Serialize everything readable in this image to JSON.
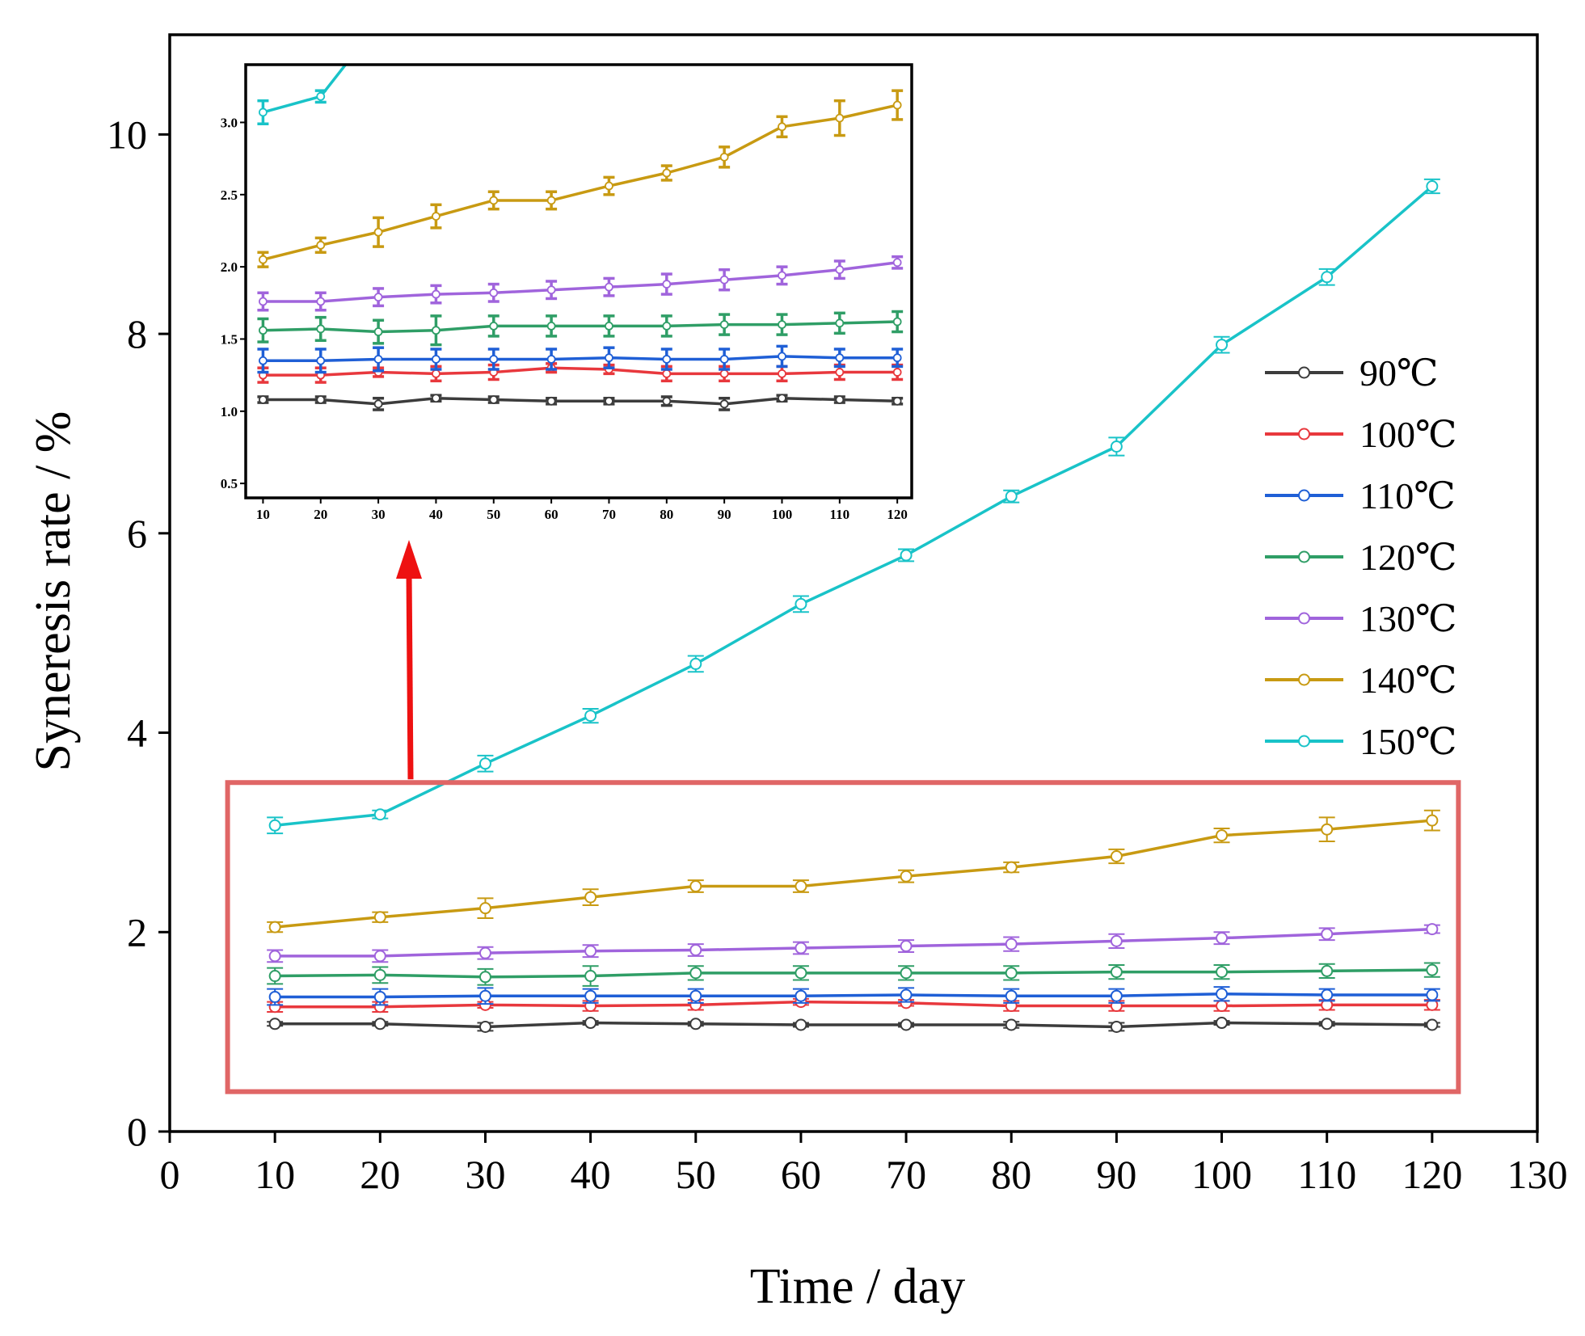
{
  "chart_data": {
    "type": "line",
    "xlabel": "Time / day",
    "ylabel": "Syneresis rate / %",
    "xlim": [
      0,
      130
    ],
    "ylim": [
      0,
      11
    ],
    "x_ticks": [
      0,
      10,
      20,
      30,
      40,
      50,
      60,
      70,
      80,
      90,
      100,
      110,
      120,
      130
    ],
    "y_ticks": [
      0,
      2,
      4,
      6,
      8,
      10
    ],
    "x": [
      10,
      20,
      30,
      40,
      50,
      60,
      70,
      80,
      90,
      100,
      110,
      120
    ],
    "legend_position": "right",
    "series": [
      {
        "name": "90℃",
        "color": "#3c3c3c",
        "values": [
          1.08,
          1.08,
          1.05,
          1.09,
          1.08,
          1.07,
          1.07,
          1.07,
          1.05,
          1.09,
          1.08,
          1.07
        ],
        "errors": [
          0.02,
          0.02,
          0.04,
          0.02,
          0.02,
          0.02,
          0.02,
          0.03,
          0.04,
          0.02,
          0.02,
          0.02
        ]
      },
      {
        "name": "100℃",
        "color": "#e8383d",
        "values": [
          1.25,
          1.25,
          1.27,
          1.26,
          1.27,
          1.3,
          1.29,
          1.26,
          1.26,
          1.26,
          1.27,
          1.27
        ],
        "errors": [
          0.05,
          0.05,
          0.03,
          0.05,
          0.05,
          0.03,
          0.03,
          0.05,
          0.05,
          0.05,
          0.05,
          0.05
        ]
      },
      {
        "name": "110℃",
        "color": "#1f5fd6",
        "values": [
          1.35,
          1.35,
          1.36,
          1.36,
          1.36,
          1.36,
          1.37,
          1.36,
          1.36,
          1.38,
          1.37,
          1.37
        ],
        "errors": [
          0.08,
          0.08,
          0.08,
          0.07,
          0.07,
          0.07,
          0.07,
          0.07,
          0.07,
          0.07,
          0.06,
          0.06
        ]
      },
      {
        "name": "120℃",
        "color": "#2f9e66",
        "values": [
          1.56,
          1.57,
          1.55,
          1.56,
          1.59,
          1.59,
          1.59,
          1.59,
          1.6,
          1.6,
          1.61,
          1.62
        ],
        "errors": [
          0.08,
          0.08,
          0.08,
          0.1,
          0.07,
          0.07,
          0.07,
          0.07,
          0.07,
          0.07,
          0.07,
          0.07
        ]
      },
      {
        "name": "130℃",
        "color": "#a064dc",
        "values": [
          1.76,
          1.76,
          1.79,
          1.81,
          1.82,
          1.84,
          1.86,
          1.88,
          1.91,
          1.94,
          1.98,
          2.03
        ],
        "errors": [
          0.06,
          0.06,
          0.06,
          0.06,
          0.06,
          0.06,
          0.06,
          0.07,
          0.07,
          0.06,
          0.06,
          0.04
        ]
      },
      {
        "name": "140℃",
        "color": "#c89a12",
        "values": [
          2.05,
          2.15,
          2.24,
          2.35,
          2.46,
          2.46,
          2.56,
          2.65,
          2.76,
          2.97,
          3.03,
          3.12
        ],
        "errors": [
          0.05,
          0.05,
          0.1,
          0.08,
          0.06,
          0.06,
          0.06,
          0.05,
          0.07,
          0.07,
          0.12,
          0.1
        ]
      },
      {
        "name": "150℃",
        "color": "#19c3c8",
        "values": [
          3.07,
          3.18,
          3.69,
          4.17,
          4.69,
          5.29,
          5.78,
          6.37,
          6.87,
          7.89,
          8.57,
          9.48
        ],
        "errors": [
          0.08,
          0.04,
          0.08,
          0.07,
          0.08,
          0.08,
          0.06,
          0.06,
          0.09,
          0.08,
          0.08,
          0.07
        ]
      }
    ],
    "highlight_box": {
      "color": "#e06666",
      "x_range": [
        5.5,
        122.5
      ],
      "y_range": [
        0.4,
        3.5
      ]
    },
    "arrow_color": "#ee1111",
    "inset": {
      "xlim": [
        7,
        122.5
      ],
      "ylim": [
        0.4,
        3.4
      ],
      "x_ticks": [
        10,
        20,
        30,
        40,
        50,
        60,
        70,
        80,
        90,
        100,
        110,
        120
      ],
      "y_ticks": [
        0.5,
        1.0,
        1.5,
        2.0,
        2.5,
        3.0
      ],
      "y_tick_labels": [
        "0.5",
        "1.0",
        "1.5",
        "2.0",
        "2.5",
        "3.0"
      ]
    }
  }
}
